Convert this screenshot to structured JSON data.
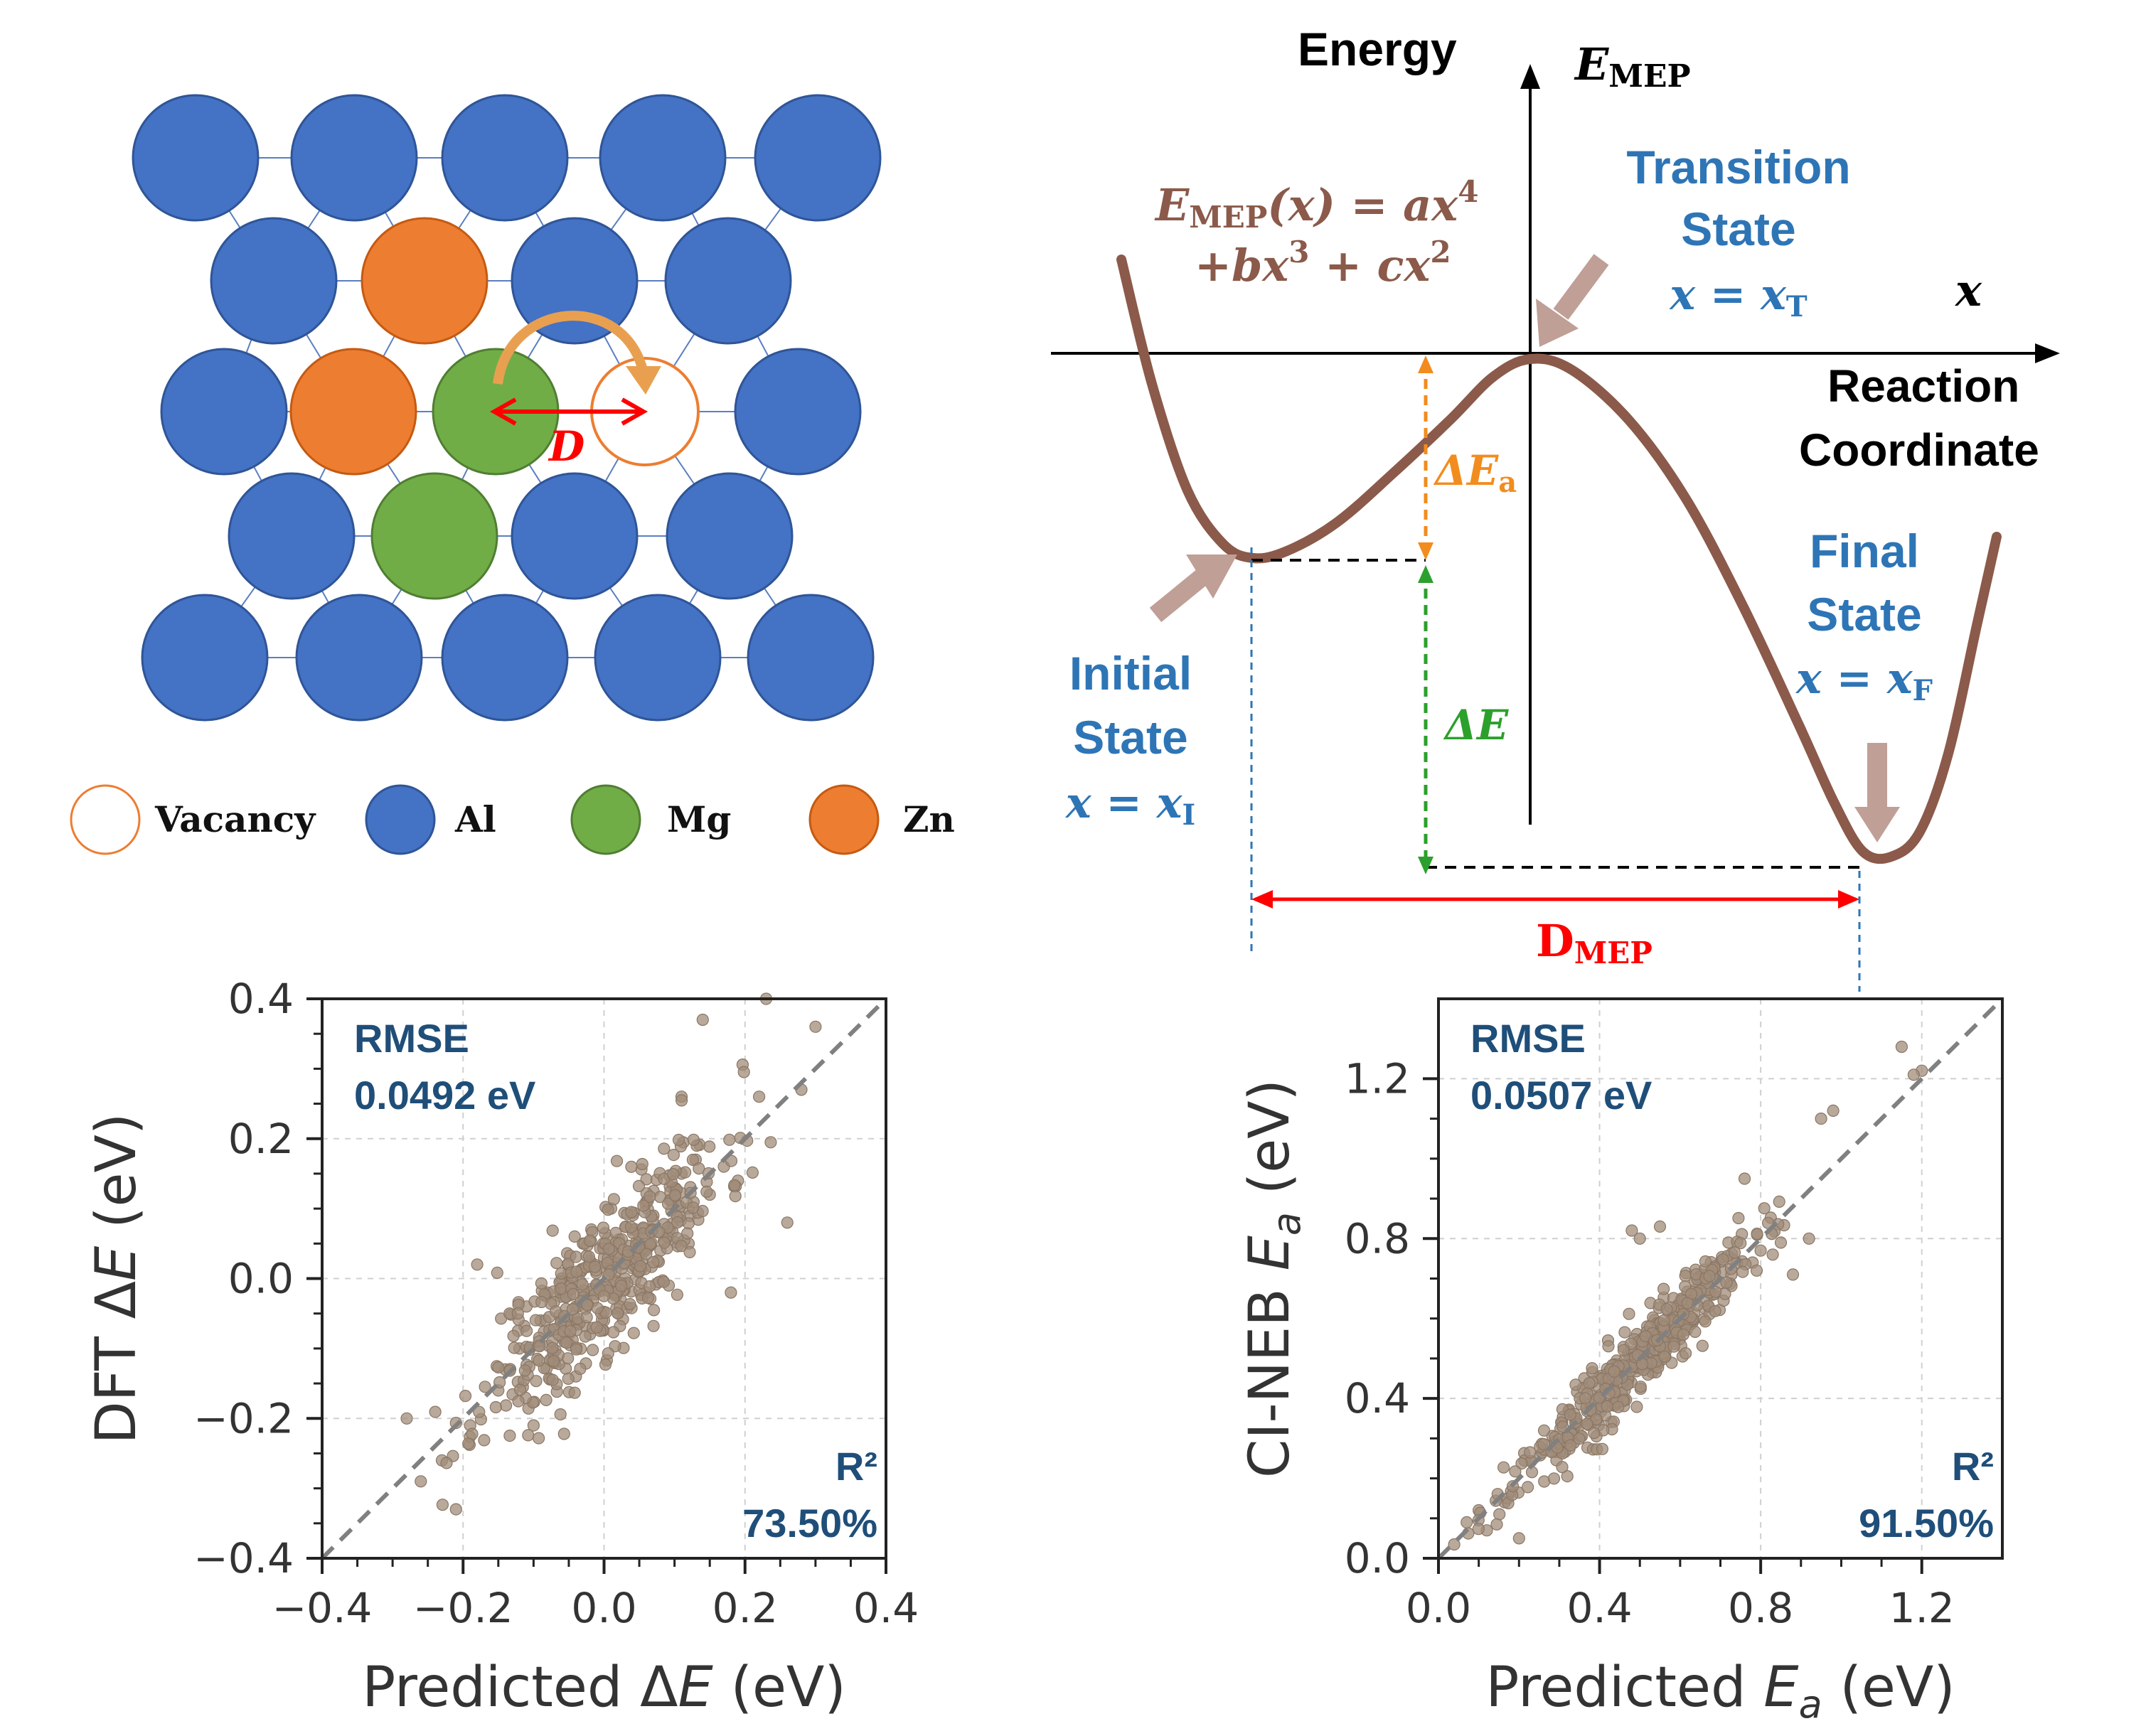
{
  "lattice": {
    "legend": [
      {
        "label": "Vacancy",
        "kind": "vacancy"
      },
      {
        "label": "Al",
        "kind": "al"
      },
      {
        "label": "Mg",
        "kind": "mg"
      },
      {
        "label": "Zn",
        "kind": "zn"
      }
    ],
    "jump_label": "D",
    "colors": {
      "al": "#4472C4",
      "mg": "#70AD47",
      "zn": "#ED7D31",
      "arc": "#E8A050",
      "jump": "#FF0000"
    }
  },
  "mep": {
    "energy_label": "Energy",
    "emep_symbol": "E",
    "emep_sub": "MEP",
    "formula_line1_prefix": "E",
    "formula_line1_sub": "MEP",
    "formula_line1_rest": "(x) = ax",
    "formula_line1_exp": "4",
    "formula_line2": "+bx",
    "formula_line2_exp": "3",
    "formula_line2_mid": " + cx",
    "formula_line2_exp2": "2",
    "x_symbol": "x",
    "reaction_label_1": "Reaction",
    "reaction_label_2": "Coordinate",
    "transition": {
      "line1": "Transition",
      "line2": "State",
      "eq": "x = x",
      "sub": "T"
    },
    "initial": {
      "line1": "Initial",
      "line2": "State",
      "eq": "x = x",
      "sub": "I"
    },
    "final": {
      "line1": "Final",
      "line2": "State",
      "eq": "x = x",
      "sub": "F"
    },
    "delta_ea": {
      "prefix": "ΔE",
      "sub": "a"
    },
    "delta_e": "ΔE",
    "dmep": {
      "main": "D",
      "sub": "MEP"
    },
    "colors": {
      "curve": "#8B5A4A",
      "blue": "#2E75B6",
      "orange": "#F28C1E",
      "green": "#2CA02C",
      "red": "#FF0000",
      "arrow": "#BF9F96"
    }
  },
  "chart_data": [
    {
      "type": "scatter",
      "id": "deltaE",
      "ylabel_parts": [
        "DFT ",
        "Δ",
        "E",
        " (eV)"
      ],
      "xlabel_parts": [
        "Predicted ",
        "Δ",
        "E",
        " (eV)"
      ],
      "xlim": [
        -0.4,
        0.4
      ],
      "ylim": [
        -0.4,
        0.4
      ],
      "xticks": [
        "−0.4",
        "−0.2",
        "0.0",
        "0.2",
        "0.4"
      ],
      "xtick_values": [
        -0.4,
        -0.2,
        0.0,
        0.2,
        0.4
      ],
      "yticks": [
        "−0.4",
        "−0.2",
        "0.0",
        "0.2",
        "0.4"
      ],
      "ytick_values": [
        -0.4,
        -0.2,
        0.0,
        0.2,
        0.4
      ],
      "grid": true,
      "rmse_label": "RMSE",
      "rmse_value": "0.0492 eV",
      "r2_label": "R²",
      "r2_value": "73.50%",
      "diagonal": true,
      "points": [
        [
          0.23,
          0.4
        ],
        [
          0.3,
          0.36
        ],
        [
          0.14,
          0.37
        ],
        [
          0.28,
          0.27
        ],
        [
          0.22,
          0.26
        ],
        [
          0.11,
          0.26
        ],
        [
          -0.21,
          -0.33
        ],
        [
          -0.28,
          -0.2
        ],
        [
          -0.23,
          -0.26
        ],
        [
          -0.26,
          -0.29
        ],
        [
          0.26,
          0.08
        ],
        [
          0.18,
          -0.02
        ],
        [
          -0.18,
          0.02
        ],
        [
          0.19,
          0.14
        ],
        [
          -0.1,
          -0.21
        ],
        [
          -0.19,
          -0.21
        ],
        [
          0.12,
          0.1
        ],
        [
          -0.15,
          -0.16
        ],
        [
          -0.02,
          -0.08
        ],
        [
          0.06,
          -0.02
        ],
        [
          0.05,
          0.02
        ],
        [
          -0.04,
          -0.04
        ],
        [
          0.1,
          0.13
        ],
        [
          -0.09,
          -0.06
        ],
        [
          0.0,
          0.03
        ],
        [
          0.03,
          0.0
        ],
        [
          -0.06,
          0.0
        ],
        [
          0.13,
          0.17
        ],
        [
          0.07,
          0.09
        ],
        [
          -0.12,
          -0.1
        ],
        [
          0.02,
          -0.05
        ],
        [
          -0.03,
          0.05
        ],
        [
          0.08,
          0.04
        ],
        [
          -0.07,
          -0.12
        ],
        [
          0.15,
          0.12
        ],
        [
          -0.01,
          -0.01
        ],
        [
          0.04,
          0.07
        ],
        [
          -0.05,
          -0.08
        ],
        [
          0.09,
          0.06
        ],
        [
          -0.11,
          -0.04
        ],
        [
          0.01,
          0.1
        ],
        [
          -0.08,
          -0.02
        ],
        [
          0.11,
          0.15
        ],
        [
          -0.14,
          -0.13
        ],
        [
          0.06,
          0.11
        ],
        [
          -0.02,
          0.02
        ],
        [
          0.0,
          -0.06
        ],
        [
          0.12,
          0.05
        ],
        [
          -0.04,
          -0.14
        ],
        [
          0.17,
          0.16
        ]
      ],
      "n_random": 460,
      "random_seed": 11,
      "noise": 0.055,
      "xcenter": 0.0,
      "xspread": 0.085,
      "colors": {
        "point": "#A08C7A",
        "point_edge": "#8A7664",
        "diag": "#808080",
        "frame": "#222222",
        "grid": "#D0D0D0",
        "text": "#333333",
        "stat": "#1F4E79"
      }
    },
    {
      "type": "scatter",
      "id": "Ea",
      "ylabel_parts": [
        "CI-NEB ",
        "",
        "E",
        "a",
        " (eV)"
      ],
      "xlabel_parts": [
        "Predicted ",
        "",
        "E",
        "a",
        " (eV)"
      ],
      "xlim": [
        0.0,
        1.4
      ],
      "ylim": [
        0.0,
        1.4
      ],
      "xticks": [
        "0.0",
        "0.4",
        "0.8",
        "1.2"
      ],
      "xtick_values": [
        0.0,
        0.4,
        0.8,
        1.2
      ],
      "yticks": [
        "0.0",
        "0.4",
        "0.8",
        "1.2"
      ],
      "ytick_values": [
        0.0,
        0.4,
        0.8,
        1.2
      ],
      "grid": true,
      "rmse_label": "RMSE",
      "rmse_value": "0.0507 eV",
      "r2_label": "R²",
      "r2_value": "91.50%",
      "diagonal": true,
      "points": [
        [
          1.2,
          1.22
        ],
        [
          1.18,
          1.21
        ],
        [
          1.15,
          1.28
        ],
        [
          0.98,
          1.12
        ],
        [
          0.88,
          0.71
        ],
        [
          0.92,
          0.8
        ],
        [
          0.76,
          0.95
        ],
        [
          0.07,
          0.09
        ],
        [
          0.1,
          0.12
        ],
        [
          0.12,
          0.07
        ],
        [
          0.2,
          0.05
        ],
        [
          0.5,
          0.8
        ],
        [
          0.48,
          0.82
        ],
        [
          0.55,
          0.83
        ],
        [
          0.72,
          0.79
        ],
        [
          0.78,
          0.74
        ],
        [
          0.8,
          0.77
        ],
        [
          0.79,
          0.72
        ],
        [
          0.85,
          0.79
        ],
        [
          0.83,
          0.76
        ],
        [
          0.66,
          0.7
        ],
        [
          0.95,
          1.1
        ]
      ],
      "n_random": 460,
      "random_seed": 23,
      "noise": 0.045,
      "xcenter": 0.48,
      "xspread": 0.15,
      "colors": {
        "point": "#A08C7A",
        "point_edge": "#8A7664",
        "diag": "#808080",
        "frame": "#222222",
        "grid": "#D0D0D0",
        "text": "#333333",
        "stat": "#1F4E79"
      }
    }
  ]
}
